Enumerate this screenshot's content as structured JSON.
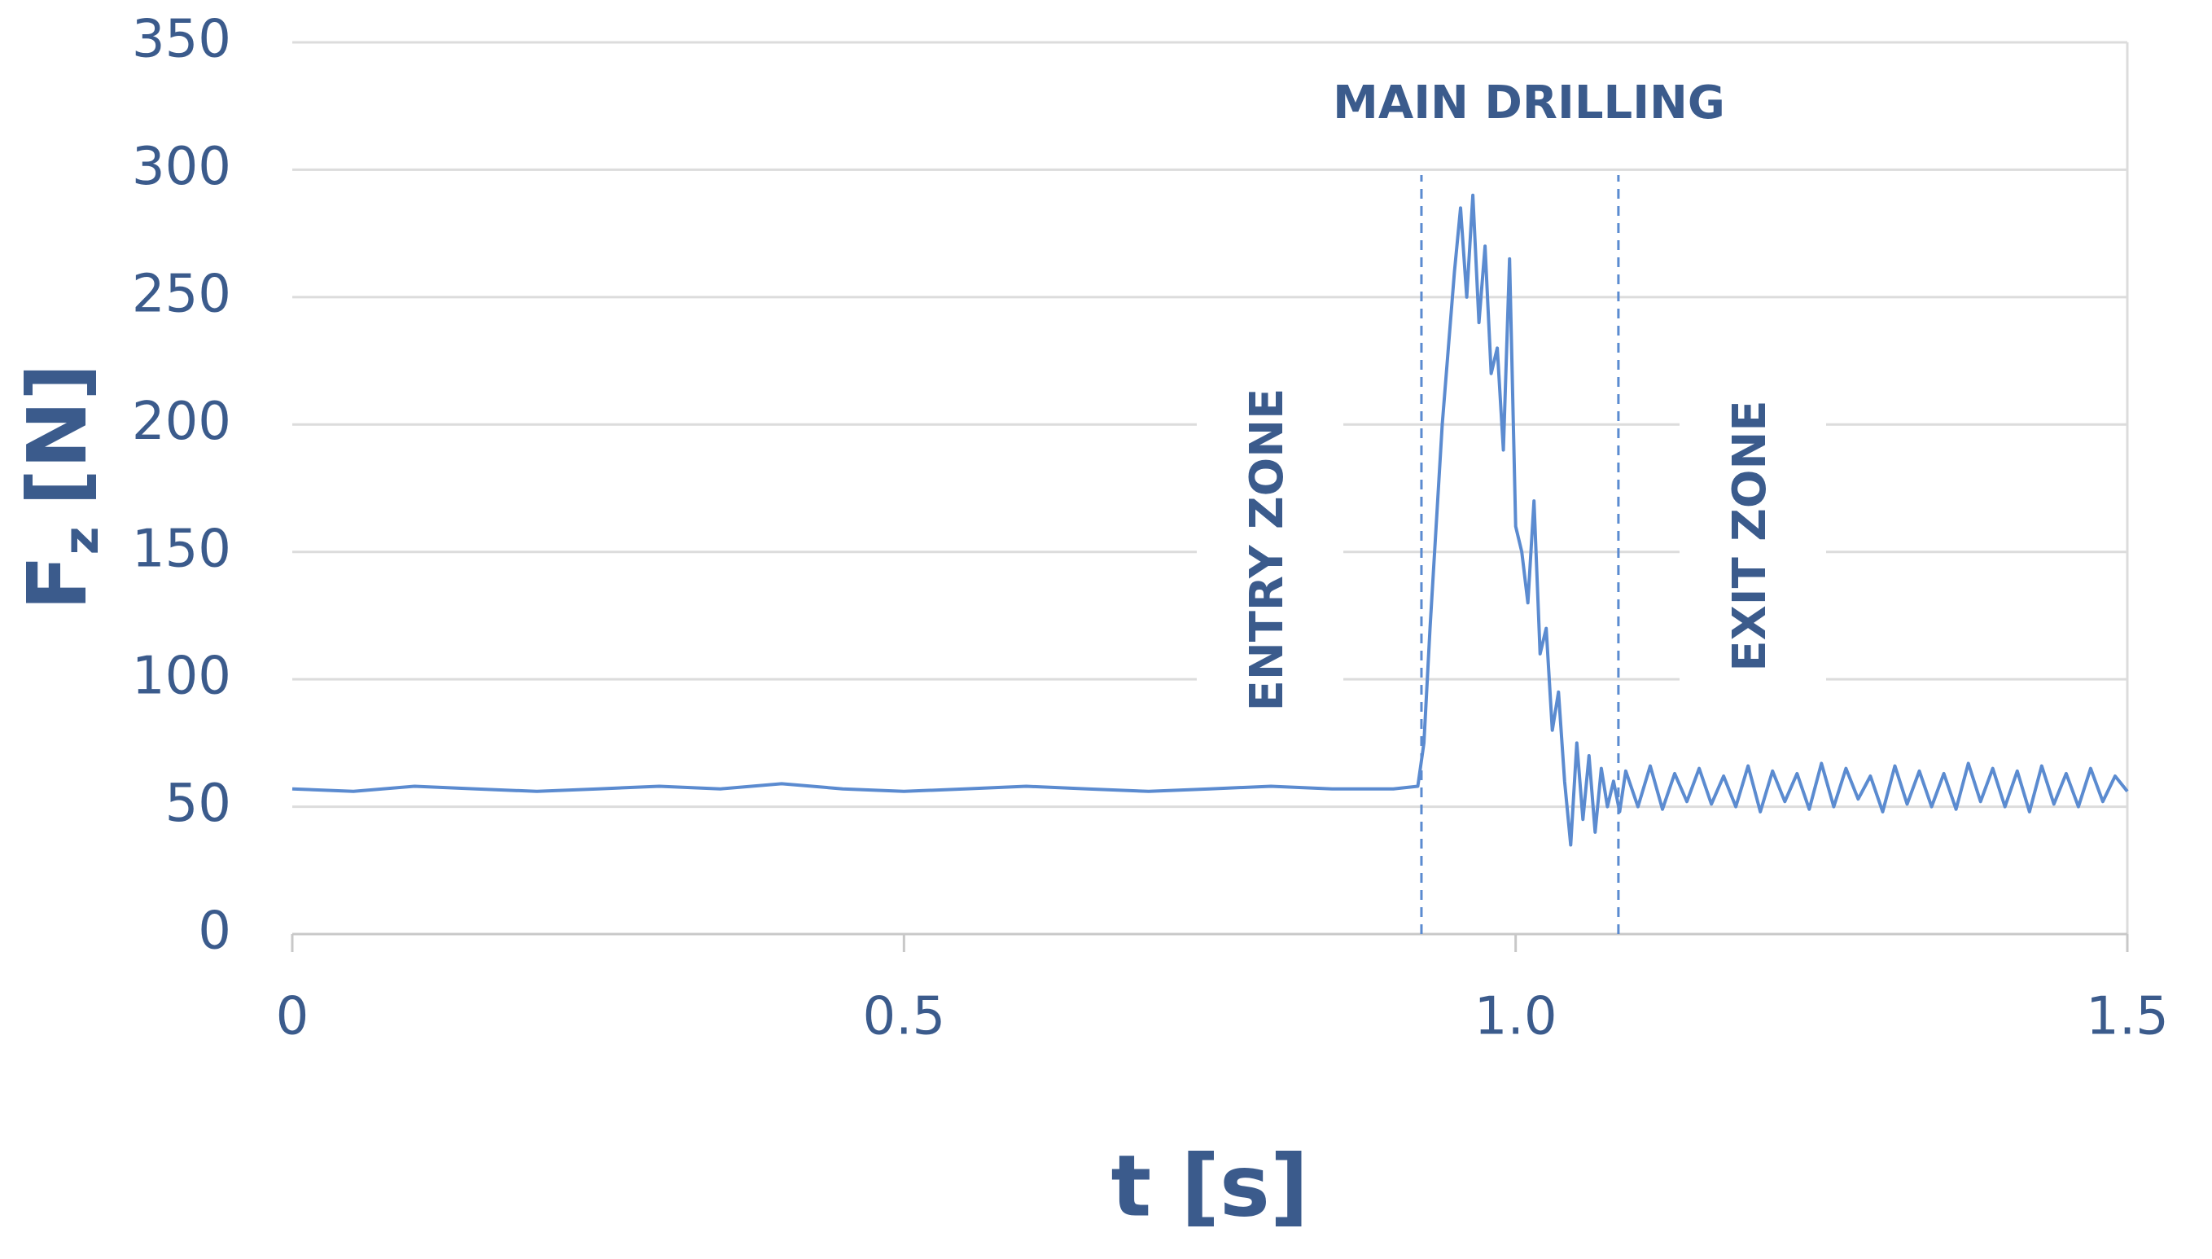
{
  "chart_data": {
    "type": "line",
    "ylabel": {
      "main": "F",
      "sub": "z",
      "unit": "[N]"
    },
    "xlabel": "t [s]",
    "annotations": [
      "MAIN DRILLING",
      "ENTRY ZONE",
      "EXIT ZONE"
    ],
    "zone_boundaries": [
      0.923,
      1.084
    ],
    "color": "#5b8bd0",
    "x": [
      0,
      0.05,
      0.1,
      0.15,
      0.2,
      0.25,
      0.3,
      0.35,
      0.4,
      0.45,
      0.5,
      0.55,
      0.6,
      0.65,
      0.7,
      0.75,
      0.8,
      0.85,
      0.9,
      0.92,
      0.925,
      0.93,
      0.935,
      0.94,
      0.945,
      0.95,
      0.955,
      0.96,
      0.965,
      0.97,
      0.975,
      0.98,
      0.985,
      0.99,
      0.995,
      1.0,
      1.005,
      1.01,
      1.015,
      1.02,
      1.025,
      1.03,
      1.035,
      1.04,
      1.045,
      1.05,
      1.055,
      1.06,
      1.065,
      1.07,
      1.075,
      1.08,
      1.085,
      1.09,
      1.1,
      1.11,
      1.12,
      1.13,
      1.14,
      1.15,
      1.16,
      1.17,
      1.18,
      1.19,
      1.2,
      1.21,
      1.22,
      1.23,
      1.24,
      1.25,
      1.26,
      1.27,
      1.28,
      1.29,
      1.3,
      1.31,
      1.32,
      1.33,
      1.34,
      1.35,
      1.36,
      1.37,
      1.38,
      1.39,
      1.4,
      1.41,
      1.42,
      1.43,
      1.44,
      1.45,
      1.46,
      1.47,
      1.48,
      1.49,
      1.5
    ],
    "values": [
      57,
      56,
      58,
      57,
      56,
      57,
      58,
      57,
      59,
      57,
      56,
      57,
      58,
      57,
      56,
      57,
      58,
      57,
      57,
      58,
      75,
      120,
      160,
      200,
      230,
      260,
      285,
      250,
      290,
      240,
      270,
      220,
      230,
      190,
      265,
      160,
      150,
      130,
      170,
      110,
      120,
      80,
      95,
      60,
      35,
      75,
      45,
      70,
      40,
      65,
      50,
      60,
      48,
      64,
      50,
      66,
      49,
      63,
      52,
      65,
      51,
      62,
      50,
      66,
      48,
      64,
      52,
      63,
      49,
      67,
      50,
      65,
      53,
      62,
      48,
      66,
      51,
      64,
      50,
      63,
      49,
      67,
      52,
      65,
      50,
      64,
      48,
      66,
      51,
      63,
      50,
      65,
      52,
      62,
      56
    ],
    "xlim": [
      0,
      1.5
    ],
    "ylim": [
      0,
      350
    ],
    "xticks": [
      0,
      0.5,
      {
        "value": 1,
        "label": "1.0"
      },
      1.5
    ],
    "yticks": [
      0,
      50,
      100,
      150,
      200,
      250,
      300,
      350
    ],
    "grid": true
  }
}
